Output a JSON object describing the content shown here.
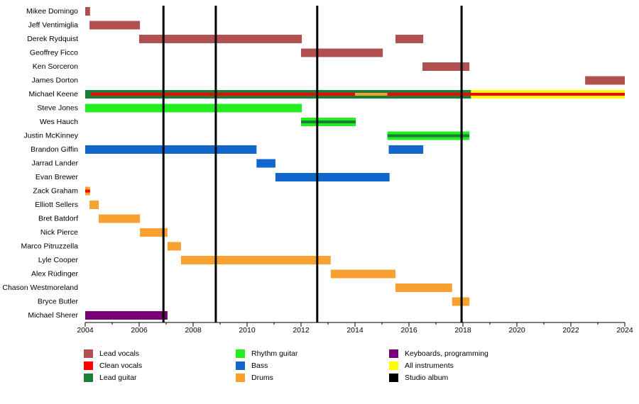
{
  "chart_data": {
    "type": "timeline",
    "xlim": [
      2004,
      2024
    ],
    "xticks": [
      2004,
      2006,
      2008,
      2010,
      2012,
      2014,
      2016,
      2018,
      2020,
      2022,
      2024
    ],
    "roles": [
      {
        "name": "Lead vocals",
        "color": "#b05050"
      },
      {
        "name": "Clean vocals",
        "color": "#ff0000"
      },
      {
        "name": "Lead guitar",
        "color": "#1a8038"
      },
      {
        "name": "Rhythm guitar",
        "color": "#22ee22"
      },
      {
        "name": "Bass",
        "color": "#1166cc"
      },
      {
        "name": "Drums",
        "color": "#f8a030"
      },
      {
        "name": "Keyboards, programming",
        "color": "#770077"
      },
      {
        "name": "All instruments",
        "color": "#ffff00"
      },
      {
        "name": "Studio album",
        "color": "#000000"
      }
    ],
    "albums": [
      2006.9,
      2008.84,
      2012.6,
      2017.95
    ],
    "members": [
      {
        "name": "Mikee Domingo",
        "bars": [
          {
            "role": "Lead vocals",
            "start": 2004.0,
            "end": 2004.18
          }
        ]
      },
      {
        "name": "Jeff Ventimiglia",
        "bars": [
          {
            "role": "Lead vocals",
            "start": 2004.16,
            "end": 2006.03
          }
        ]
      },
      {
        "name": "Derek Rydquist",
        "bars": [
          {
            "role": "Lead vocals",
            "start": 2006.0,
            "end": 2012.03
          },
          {
            "role": "Lead vocals",
            "start": 2015.5,
            "end": 2016.53
          }
        ]
      },
      {
        "name": "Geoffrey Ficco",
        "bars": [
          {
            "role": "Lead vocals",
            "start": 2012.0,
            "end": 2015.03
          }
        ]
      },
      {
        "name": "Ken Sorceron",
        "bars": [
          {
            "role": "Lead vocals",
            "start": 2016.5,
            "end": 2018.24
          }
        ]
      },
      {
        "name": "James Dorton",
        "bars": [
          {
            "role": "Lead vocals",
            "start": 2022.53,
            "end": 2024.0
          }
        ]
      },
      {
        "name": "Michael Keene",
        "bars": [
          {
            "role": "Lead guitar",
            "start": 2004.0,
            "end": 2018.3
          },
          {
            "role": "All instruments",
            "start": 2018.3,
            "end": 2024.0
          },
          {
            "role": "Clean vocals",
            "start": 2004.2,
            "end": 2024.0
          },
          {
            "role": "Drums",
            "start": 2014.0,
            "end": 2015.2
          }
        ]
      },
      {
        "name": "Steve Jones",
        "bars": [
          {
            "role": "Rhythm guitar",
            "start": 2004.0,
            "end": 2012.03
          }
        ]
      },
      {
        "name": "Wes Hauch",
        "bars": [
          {
            "role": "Rhythm guitar",
            "start": 2012.0,
            "end": 2014.03
          },
          {
            "role": "Lead guitar",
            "start": 2012.0,
            "end": 2014.03
          }
        ]
      },
      {
        "name": "Justin McKinney",
        "bars": [
          {
            "role": "Rhythm guitar",
            "start": 2015.2,
            "end": 2018.24
          },
          {
            "role": "Lead guitar",
            "start": 2015.2,
            "end": 2018.24
          }
        ]
      },
      {
        "name": "Brandon Giffin",
        "bars": [
          {
            "role": "Bass",
            "start": 2004.0,
            "end": 2010.35
          },
          {
            "role": "Bass",
            "start": 2015.25,
            "end": 2016.53
          }
        ]
      },
      {
        "name": "Jarrad Lander",
        "bars": [
          {
            "role": "Bass",
            "start": 2010.35,
            "end": 2011.05
          }
        ]
      },
      {
        "name": "Evan Brewer",
        "bars": [
          {
            "role": "Bass",
            "start": 2011.05,
            "end": 2015.28
          }
        ]
      },
      {
        "name": "Zack Graham",
        "bars": [
          {
            "role": "Drums",
            "start": 2004.0,
            "end": 2004.18
          },
          {
            "role": "Clean vocals",
            "start": 2004.0,
            "end": 2004.18
          }
        ]
      },
      {
        "name": "Elliott Sellers",
        "bars": [
          {
            "role": "Drums",
            "start": 2004.16,
            "end": 2004.5
          }
        ]
      },
      {
        "name": "Bret Batdorf",
        "bars": [
          {
            "role": "Drums",
            "start": 2004.5,
            "end": 2006.03
          }
        ]
      },
      {
        "name": "Nick Pierce",
        "bars": [
          {
            "role": "Drums",
            "start": 2006.03,
            "end": 2007.05
          }
        ]
      },
      {
        "name": "Marco Pitruzzella",
        "bars": [
          {
            "role": "Drums",
            "start": 2007.05,
            "end": 2007.55
          }
        ]
      },
      {
        "name": "Lyle Cooper",
        "bars": [
          {
            "role": "Drums",
            "start": 2007.55,
            "end": 2013.1
          }
        ]
      },
      {
        "name": "Alex Rüdinger",
        "bars": [
          {
            "role": "Drums",
            "start": 2013.1,
            "end": 2015.5
          }
        ]
      },
      {
        "name": "Chason Westmoreland",
        "bars": [
          {
            "role": "Drums",
            "start": 2015.5,
            "end": 2017.6
          }
        ]
      },
      {
        "name": "Bryce Butler",
        "bars": [
          {
            "role": "Drums",
            "start": 2017.6,
            "end": 2018.24
          }
        ]
      },
      {
        "name": "Michael Sherer",
        "bars": [
          {
            "role": "Keyboards, programming",
            "start": 2004.0,
            "end": 2007.05
          }
        ]
      }
    ]
  }
}
